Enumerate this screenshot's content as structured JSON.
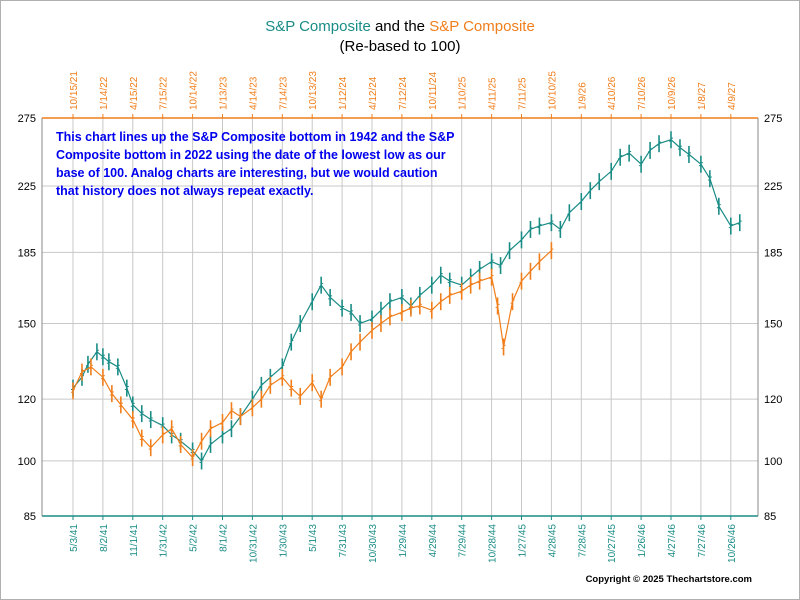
{
  "title": {
    "series1_name": "S&P Composite",
    "connector": " and the ",
    "series2_name": "S&P Composite",
    "subtitle": "(Re-based to 100)"
  },
  "annotation": "This chart lines up the S&P Composite bottom in 1942 and the S&P Composite bottom in 2022 using the date of the lowest low as our base of 100.  Analog charts are interesting, but we would caution that history does not always repeat exactly.",
  "copyright": "Copyright © 2025 Thechartstore.com",
  "colors": {
    "teal": "#1a8c86",
    "orange": "#f07e1a",
    "grid": "#c8c8c8",
    "annotation": "#0000ee"
  },
  "chart_data": {
    "type": "line",
    "scale": "log",
    "ylim": [
      85,
      275
    ],
    "y_ticks": [
      85,
      100,
      120,
      150,
      185,
      225,
      275
    ],
    "grid": true,
    "bottom_axis_ticks": [
      "5/3/41",
      "8/2/41",
      "11/1/41",
      "1/31/42",
      "5/2/42",
      "8/1/42",
      "10/31/42",
      "1/30/43",
      "5/1/43",
      "7/31/43",
      "10/30/43",
      "1/29/44",
      "4/29/44",
      "7/29/44",
      "10/28/44",
      "1/27/45",
      "4/28/45",
      "7/28/45",
      "10/27/45",
      "1/26/46",
      "4/27/46",
      "7/27/46",
      "10/26/46"
    ],
    "top_axis_ticks": [
      "10/15/21",
      "1/14/22",
      "4/15/22",
      "7/15/22",
      "10/14/22",
      "1/13/23",
      "4/14/23",
      "7/14/23",
      "10/13/23",
      "1/12/24",
      "4/12/24",
      "7/12/24",
      "10/11/24",
      "1/10/25",
      "4/11/25",
      "7/11/25",
      "10/10/25",
      "1/9/26",
      "4/10/26",
      "7/10/26",
      "10/9/26",
      "1/8/27",
      "4/9/27"
    ],
    "series": [
      {
        "name": "S&P Composite",
        "axis": "bottom",
        "color": "#1a8c86",
        "x_index": [
          0,
          0.3,
          0.5,
          0.8,
          1,
          1.2,
          1.5,
          1.8,
          2,
          2.3,
          2.6,
          3,
          3.3,
          3.6,
          4,
          4.3,
          4.6,
          5,
          5.3,
          5.6,
          6,
          6.3,
          6.6,
          7,
          7.3,
          7.6,
          8,
          8.3,
          8.6,
          9,
          9.3,
          9.6,
          10,
          10.3,
          10.6,
          11,
          11.3,
          11.6,
          12,
          12.3,
          12.6,
          13,
          13.3,
          13.6,
          14,
          14.3,
          14.6,
          15,
          15.3,
          15.6,
          16,
          16.3,
          16.6,
          17,
          17.3,
          17.6,
          18,
          18.3,
          18.6,
          19,
          19.3,
          19.6,
          20,
          20.3,
          20.6,
          21,
          21.3,
          21.6,
          22,
          22.3
        ],
        "values": [
          124,
          128,
          133,
          138,
          136,
          134,
          132,
          124,
          118,
          115,
          113,
          111,
          108,
          106,
          103,
          100,
          105,
          108,
          110,
          114,
          120,
          125,
          128,
          132,
          142,
          150,
          160,
          168,
          162,
          157,
          155,
          150,
          152,
          156,
          160,
          162,
          158,
          163,
          168,
          173,
          170,
          168,
          172,
          176,
          180,
          178,
          186,
          192,
          198,
          200,
          202,
          198,
          208,
          215,
          222,
          228,
          235,
          245,
          248,
          240,
          250,
          255,
          258,
          252,
          247,
          240,
          230,
          212,
          200,
          202
        ]
      },
      {
        "name": "S&P Composite",
        "axis": "top",
        "color": "#f07e1a",
        "x_index": [
          0,
          0.3,
          0.6,
          1,
          1.3,
          1.6,
          2,
          2.3,
          2.6,
          3,
          3.3,
          3.6,
          4,
          4.3,
          4.6,
          5,
          5.3,
          5.6,
          6,
          6.3,
          6.6,
          7,
          7.3,
          7.6,
          8,
          8.3,
          8.6,
          9,
          9.3,
          9.6,
          10,
          10.3,
          10.6,
          11,
          11.3,
          11.6,
          12,
          12.3,
          12.6,
          13,
          13.3,
          13.6,
          14,
          14.2,
          14.4,
          14.7,
          15,
          15.3,
          15.6,
          16
        ],
        "values": [
          123,
          130,
          132,
          128,
          122,
          118,
          113,
          107,
          104,
          108,
          110,
          105,
          101,
          106,
          110,
          112,
          116,
          114,
          117,
          120,
          125,
          128,
          124,
          121,
          126,
          120,
          128,
          132,
          138,
          142,
          147,
          150,
          153,
          155,
          157,
          158,
          156,
          160,
          163,
          165,
          168,
          170,
          172,
          158,
          140,
          160,
          170,
          175,
          180,
          186
        ]
      }
    ]
  }
}
